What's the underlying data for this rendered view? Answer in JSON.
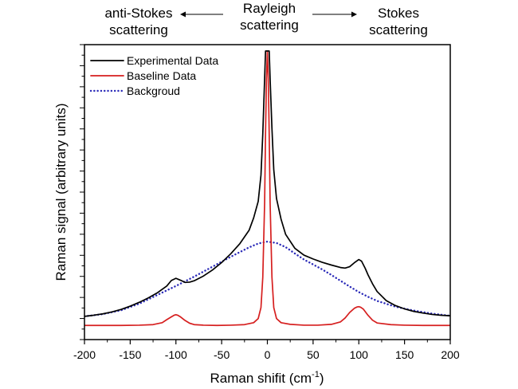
{
  "header": {
    "anti_stokes_line1": "anti-Stokes",
    "anti_stokes_line2": "scattering",
    "rayleigh_line1": "Rayleigh",
    "rayleigh_line2": "scattering",
    "stokes_line1": "Stokes",
    "stokes_line2": "scattering"
  },
  "chart_data": {
    "type": "line",
    "xlabel": "Raman shifit (cm",
    "xlabel_superscript": "-1",
    "xlabel_suffix": ")",
    "ylabel": "Raman signal (arbitrary units)",
    "xlim": [
      -200,
      200
    ],
    "ylim": [
      0,
      100
    ],
    "xticks": [
      -200,
      -150,
      -100,
      -50,
      0,
      50,
      100,
      150,
      200
    ],
    "y_ticks_labeled": false,
    "grid": false,
    "legend_position": "top-left",
    "series": [
      {
        "name": "Experimental Data",
        "color": "#000000",
        "style": "solid",
        "x": [
          -200,
          -190,
          -180,
          -170,
          -160,
          -150,
          -140,
          -130,
          -120,
          -110,
          -105,
          -100,
          -95,
          -90,
          -85,
          -80,
          -70,
          -60,
          -50,
          -40,
          -30,
          -20,
          -15,
          -10,
          -7,
          -5,
          -3,
          -2,
          -1,
          0,
          1,
          2,
          3,
          5,
          7,
          10,
          15,
          20,
          30,
          40,
          50,
          60,
          70,
          80,
          85,
          90,
          95,
          100,
          103,
          107,
          110,
          115,
          120,
          130,
          140,
          150,
          160,
          170,
          180,
          190,
          200
        ],
        "y": [
          3.8,
          4.2,
          4.7,
          5.4,
          6.3,
          7.5,
          8.9,
          10.5,
          12.4,
          14.8,
          16.8,
          17.6,
          16.9,
          16.1,
          16.2,
          16.7,
          18.4,
          20.6,
          23.3,
          26.5,
          30.2,
          35.0,
          39.5,
          45.5,
          55,
          70,
          90,
          100,
          100,
          100,
          100,
          100,
          90,
          72,
          57,
          46.5,
          39,
          33.5,
          28.5,
          26,
          24.6,
          23.4,
          22.4,
          21.5,
          21.3,
          21.8,
          23.2,
          24.4,
          23.8,
          21.2,
          18.9,
          15.6,
          12.8,
          9.5,
          7.7,
          6.5,
          5.6,
          5.0,
          4.5,
          4.2,
          4.0
        ]
      },
      {
        "name": "Baseline Data",
        "color": "#d61f1f",
        "style": "solid",
        "x": [
          -200,
          -180,
          -160,
          -140,
          -125,
          -115,
          -110,
          -105,
          -102,
          -100,
          -98,
          -95,
          -90,
          -85,
          -80,
          -70,
          -55,
          -40,
          -25,
          -15,
          -10,
          -7,
          -5,
          -3,
          -2,
          -1,
          0,
          1,
          2,
          3,
          5,
          7,
          10,
          15,
          25,
          40,
          55,
          70,
          80,
          85,
          90,
          95,
          98,
          100,
          102,
          105,
          110,
          115,
          120,
          135,
          150,
          170,
          200
        ],
        "y": [
          0.5,
          0.5,
          0.5,
          0.6,
          0.8,
          1.5,
          2.6,
          3.6,
          4.2,
          4.4,
          4.2,
          3.6,
          2.3,
          1.3,
          0.8,
          0.6,
          0.5,
          0.6,
          0.8,
          1.5,
          3,
          7,
          18,
          45,
          70,
          90,
          100,
          90,
          70,
          45,
          18,
          7,
          3,
          1.5,
          0.9,
          0.6,
          0.6,
          0.9,
          1.8,
          3.2,
          5.2,
          6.7,
          7.2,
          7.3,
          7.1,
          6.4,
          4.2,
          2.4,
          1.4,
          0.8,
          0.6,
          0.5,
          0.5
        ]
      },
      {
        "name": "Backgroud",
        "color": "#2a2ab8",
        "style": "dotted",
        "x": [
          -200,
          -180,
          -160,
          -140,
          -120,
          -100,
          -80,
          -60,
          -40,
          -20,
          -10,
          0,
          10,
          20,
          30,
          40,
          50,
          60,
          70,
          80,
          90,
          100,
          110,
          120,
          140,
          160,
          180,
          200
        ],
        "y": [
          3.8,
          4.6,
          6.0,
          8.4,
          11.6,
          14.8,
          18.2,
          21.8,
          25.4,
          28.8,
          30.2,
          30.9,
          30.4,
          28.9,
          26.6,
          24.4,
          22.6,
          20.8,
          18.8,
          16.7,
          14.6,
          12.6,
          10.9,
          9.4,
          7.3,
          5.9,
          4.8,
          4.0
        ]
      }
    ]
  }
}
